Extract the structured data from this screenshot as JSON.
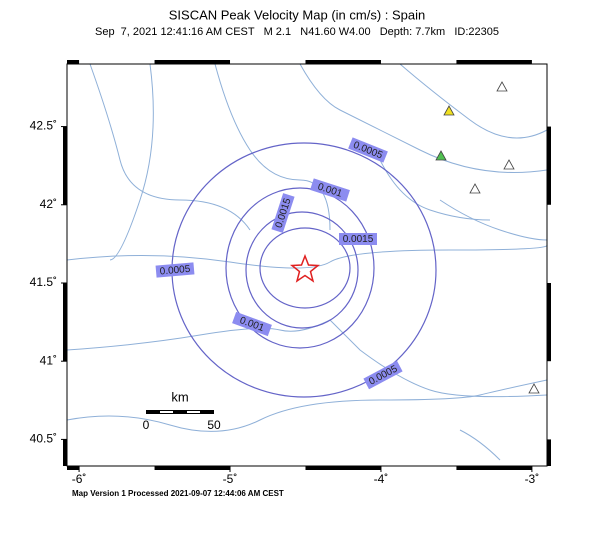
{
  "map": {
    "title": "SISCAN Peak Velocity Map (in cm/s) : Spain",
    "subtitle": "Sep  7, 2021 12:41:16 AM CEST   M 2.1   N41.60 W4.00   Depth: 7.7km   ID:22305",
    "footer": "Map Version 1 Processed 2021-09-07 12:44:06 AM CEST",
    "xlim": [
      -6.08,
      -2.9
    ],
    "ylim": [
      40.33,
      42.9
    ],
    "xticks": [
      {
        "value": -6,
        "label": "-6˚"
      },
      {
        "value": -5,
        "label": "-5˚"
      },
      {
        "value": -4,
        "label": "-4˚"
      },
      {
        "value": -3,
        "label": "-3˚"
      }
    ],
    "yticks": [
      {
        "value": 42.5,
        "label": "42.5˚"
      },
      {
        "value": 42,
        "label": "42˚"
      },
      {
        "value": 41.5,
        "label": "41.5˚"
      },
      {
        "value": 41,
        "label": "41˚"
      },
      {
        "value": 40.5,
        "label": "40.5˚"
      }
    ],
    "contour_labels": [
      0.0005,
      0.001,
      0.0015,
      0.0015,
      0.0005,
      0.001,
      0.0005
    ],
    "scale": {
      "unit": "km",
      "ticks": [
        0,
        50
      ]
    }
  }
}
